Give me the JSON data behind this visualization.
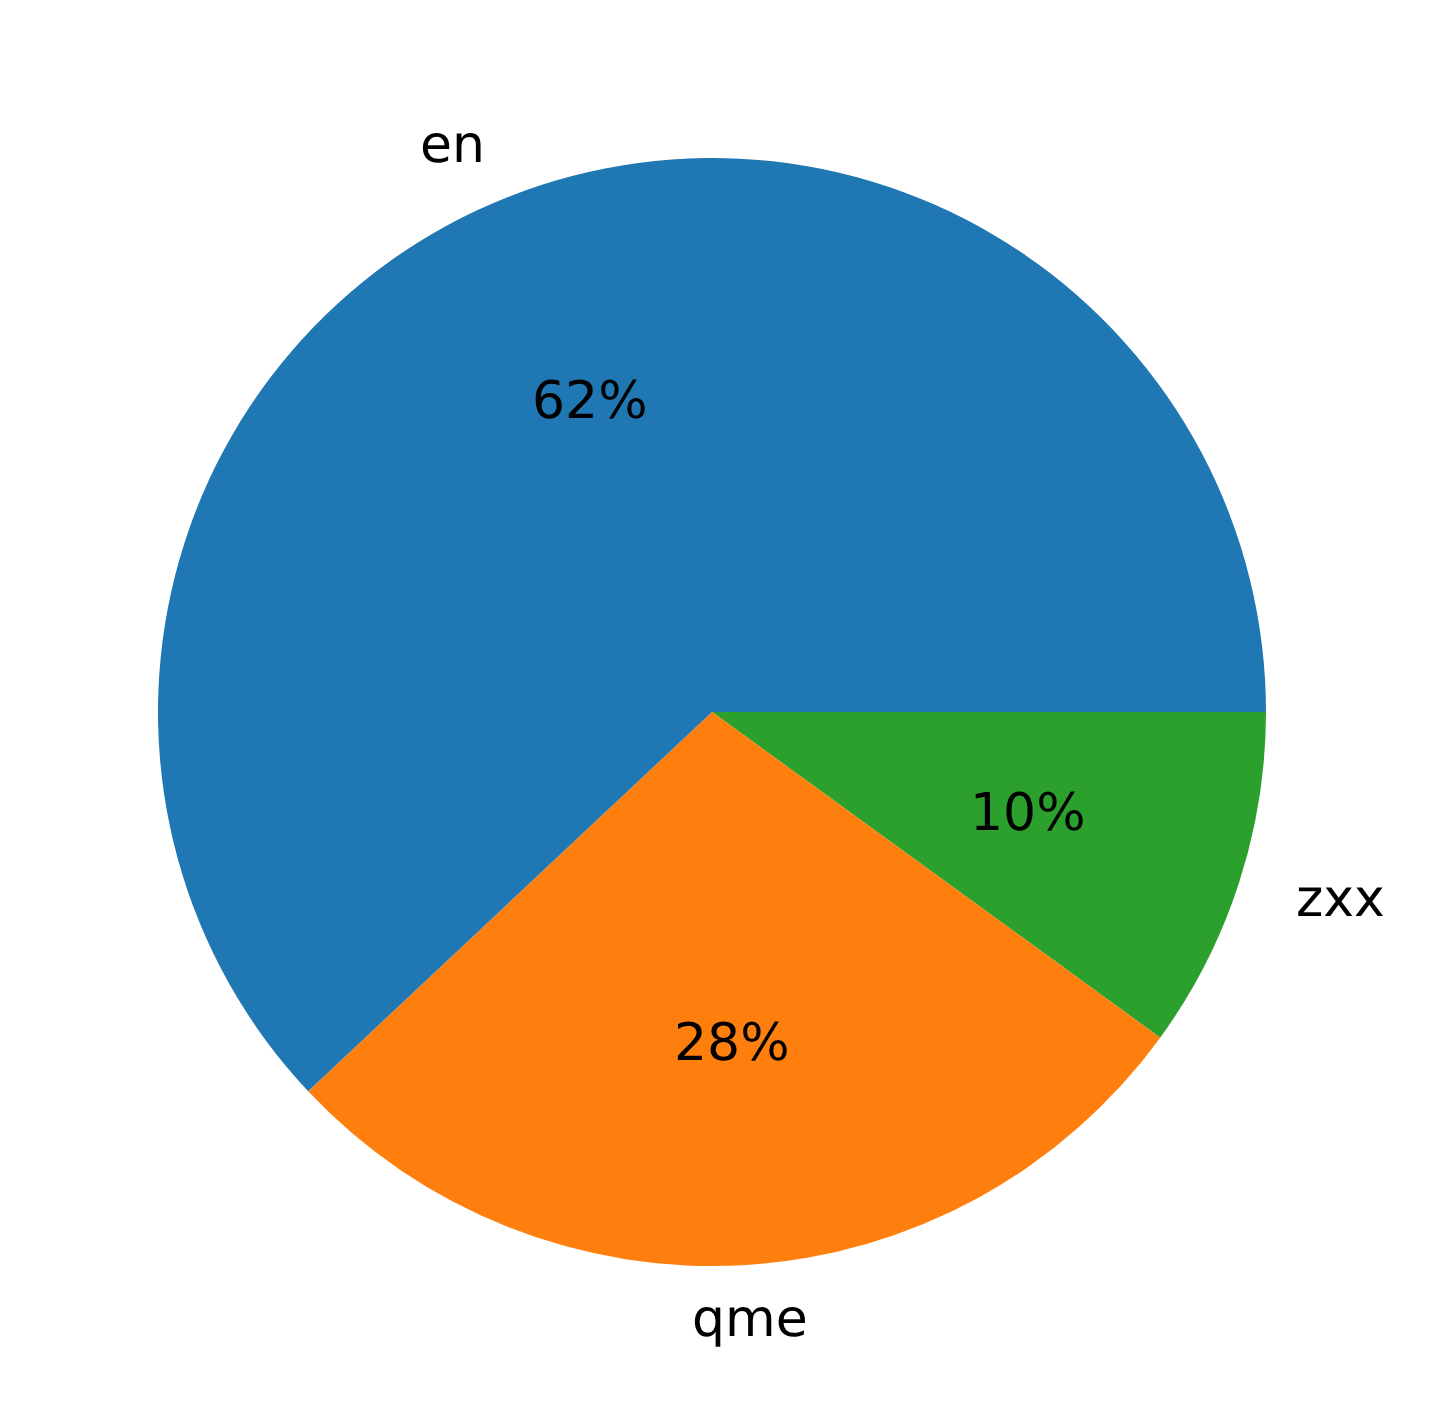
{
  "chart_data": {
    "type": "pie",
    "categories": [
      "en",
      "qme",
      "zxx"
    ],
    "values": [
      62,
      28,
      10
    ],
    "colors": [
      "#1f77b4",
      "#ff7f0e",
      "#2ca02c"
    ],
    "value_labels": [
      "62%",
      "28%",
      "10%"
    ],
    "legend": false
  }
}
